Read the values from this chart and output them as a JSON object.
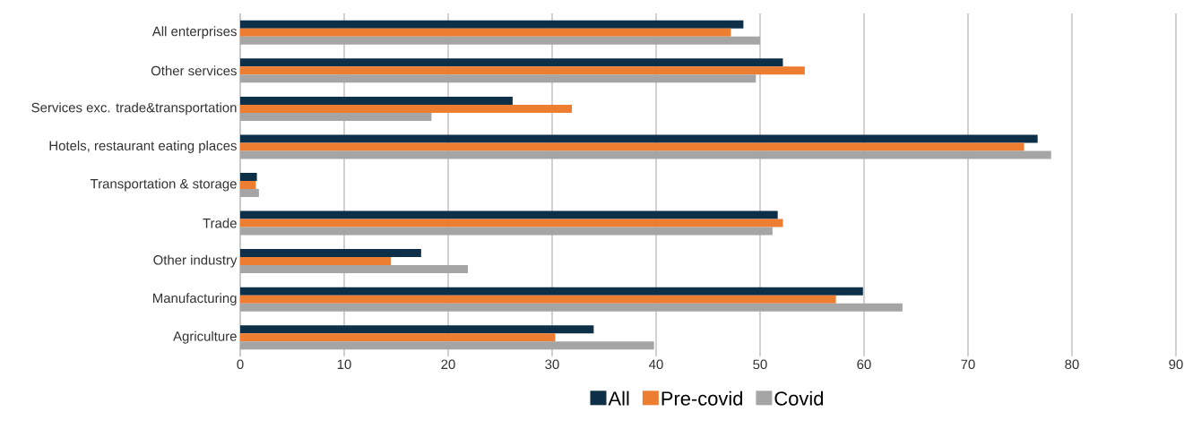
{
  "chart_data": {
    "type": "bar",
    "orientation": "horizontal",
    "categories": [
      "All enterprises",
      "Other services",
      "Services exc. trade&transportation",
      "Hotels, restaurant eating places",
      "Transportation & storage",
      "Trade",
      "Other industry",
      "Manufacturing",
      "Agriculture"
    ],
    "series": [
      {
        "name": "All",
        "color": "#0d2f48",
        "values": [
          48.4,
          52.2,
          26.2,
          76.7,
          1.6,
          51.7,
          17.4,
          59.9,
          34.0
        ]
      },
      {
        "name": "Pre-covid",
        "color": "#ed7d31",
        "values": [
          47.2,
          54.3,
          31.9,
          75.4,
          1.5,
          52.2,
          14.5,
          57.3,
          30.3
        ]
      },
      {
        "name": "Covid",
        "color": "#a5a5a5",
        "values": [
          50.0,
          49.6,
          18.4,
          78.0,
          1.8,
          51.2,
          21.9,
          63.7,
          39.8
        ]
      }
    ],
    "xlim": [
      0,
      90
    ],
    "xticks": [
      0,
      10,
      20,
      30,
      40,
      50,
      60,
      70,
      80,
      90
    ],
    "grid": "x",
    "legend": "bottom"
  }
}
